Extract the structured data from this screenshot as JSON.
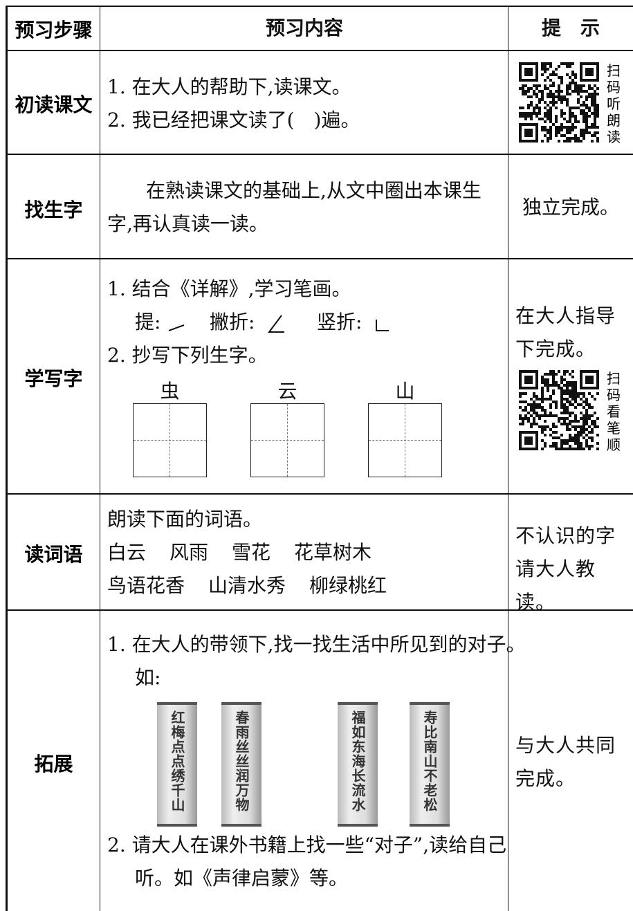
{
  "header": {
    "step": "预习步骤",
    "content": "预习内容",
    "hint": "提　示"
  },
  "rows": [
    {
      "step": "初读课文",
      "lines": [
        "1. 在大人的帮助下,读课文。",
        "2. 我已经把课文读了(　)遍。"
      ],
      "qr_label": "扫码听朗读"
    },
    {
      "step": "找生字",
      "paragraph": "在熟读课文的基础上,从文中圈出本课生字,再认真读一读。",
      "hint": "独立完成。"
    },
    {
      "step": "学写字",
      "lines": [
        "1. 结合《详解》,学习笔画。",
        "2. 抄写下列生字。"
      ],
      "strokes": [
        "提:",
        "撇折:",
        "竖折:"
      ],
      "characters": [
        "虫",
        "云",
        "山"
      ],
      "hint": "在大人指导下完成。",
      "qr_label": "扫码看笔顺"
    },
    {
      "step": "读词语",
      "intro": "朗读下面的词语。",
      "word_lines": [
        [
          "白云",
          "风雨",
          "雪花",
          "花草树木"
        ],
        [
          "鸟语花香",
          "山清水秀",
          "柳绿桃红"
        ]
      ],
      "hint": "不认识的字请大人教读。"
    },
    {
      "step": "拓展",
      "lines": [
        "1. 在大人的带领下,找一找生活中所见到的对子。如:",
        "2. 请大人在课外书籍上找一些“对子”,读给自己听。如《声律启蒙》等。"
      ],
      "couplets": [
        "红梅点点绣千山",
        "春雨丝丝润万物",
        "福如东海长流水",
        "寿比南山不老松"
      ],
      "hint": "与大人共同完成。"
    }
  ]
}
